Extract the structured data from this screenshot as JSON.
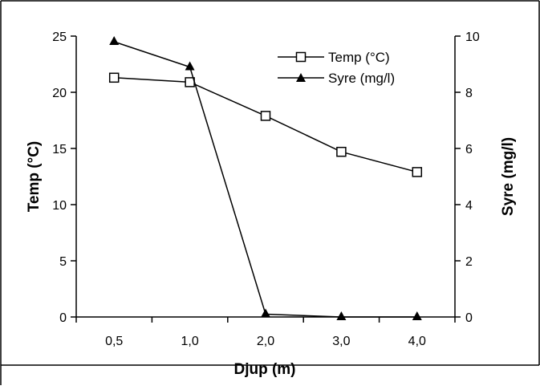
{
  "chart_data": {
    "type": "line",
    "categories": [
      "0,5",
      "1,0",
      "2,0",
      "3,0",
      "4,0"
    ],
    "series": [
      {
        "name": "Temp (°C)",
        "axis": "left",
        "marker": "open-square",
        "values": [
          21.3,
          20.9,
          17.9,
          14.7,
          12.9
        ]
      },
      {
        "name": "Syre (mg/l)",
        "axis": "right",
        "marker": "filled-triangle",
        "values": [
          9.8,
          8.9,
          0.1,
          0.0,
          0.0
        ]
      }
    ],
    "xlabel": "Djup (m)",
    "ylabel_left": "Temp (°C)",
    "ylabel_right": "Syre (mg/l)",
    "ylim_left": [
      0,
      25
    ],
    "ylim_right": [
      0,
      10
    ],
    "yticks_left": [
      "0",
      "5",
      "10",
      "15",
      "20",
      "25"
    ],
    "yticks_right": [
      "0",
      "2",
      "4",
      "6",
      "8",
      "10"
    ],
    "grid": false,
    "legend_position": "top-right",
    "colors": {
      "line": "#000000",
      "background": "#ffffff"
    }
  }
}
